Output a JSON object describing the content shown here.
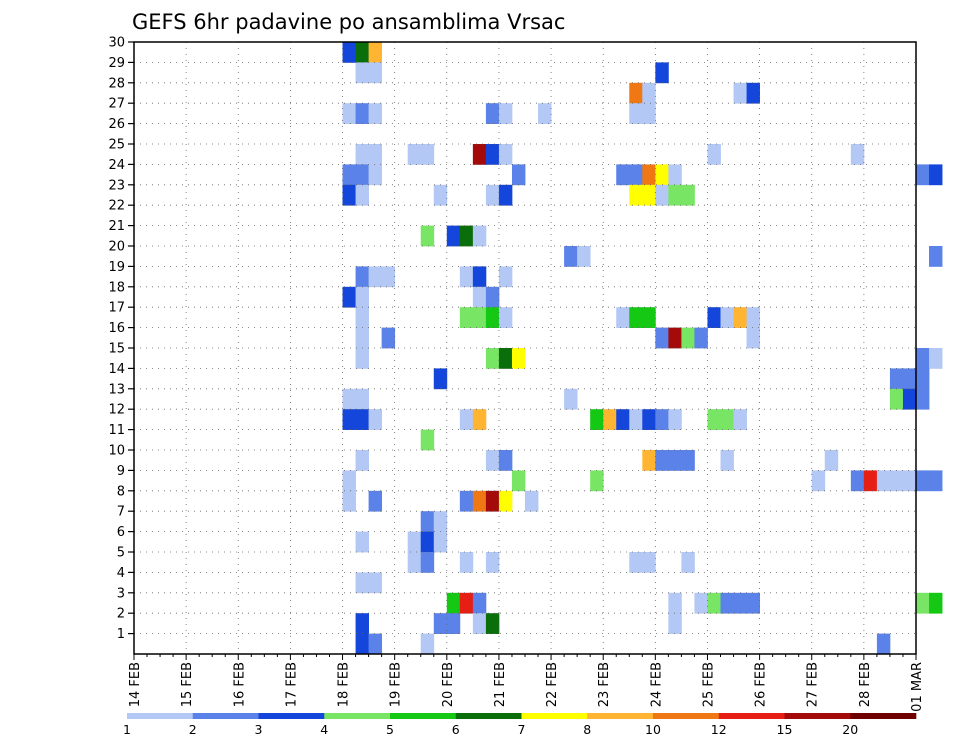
{
  "chart_data": {
    "type": "heatmap",
    "title": "GEFS 6hr padavine po ansamblima Vrsac",
    "xlabel": "",
    "ylabel": "",
    "x_labels": [
      "14 FEB",
      "15 FEB",
      "16 FEB",
      "17 FEB",
      "18 FEB",
      "19 FEB",
      "20 FEB",
      "21 FEB",
      "22 FEB",
      "23 FEB",
      "24 FEB",
      "25 FEB",
      "26 FEB",
      "27 FEB",
      "28 FEB",
      "01 MAR"
    ],
    "y_labels": [
      "1",
      "2",
      "3",
      "4",
      "5",
      "6",
      "7",
      "8",
      "9",
      "10",
      "11",
      "12",
      "13",
      "14",
      "15",
      "16",
      "17",
      "18",
      "19",
      "20",
      "21",
      "22",
      "23",
      "24",
      "25",
      "26",
      "27",
      "28",
      "29",
      "30"
    ],
    "ylim": [
      0,
      30
    ],
    "steps_per_day": 4,
    "grid": true,
    "colorbar": {
      "ticks": [
        "1",
        "2",
        "3",
        "4",
        "5",
        "6",
        "7",
        "8",
        "10",
        "12",
        "15",
        "20"
      ],
      "colors": [
        "#b4c8f5",
        "#5a82e8",
        "#1446dc",
        "#78e664",
        "#14c814",
        "#0a6e0a",
        "#ffff00",
        "#ffb432",
        "#f07814",
        "#e61e14",
        "#a50a0a",
        "#6e0000"
      ]
    },
    "cells": [
      {
        "x": 16,
        "y": 30,
        "v": 3
      },
      {
        "x": 17,
        "y": 30,
        "v": 6
      },
      {
        "x": 18,
        "y": 30,
        "v": 8
      },
      {
        "x": 17,
        "y": 29,
        "v": 1
      },
      {
        "x": 18,
        "y": 29,
        "v": 1
      },
      {
        "x": 40,
        "y": 29,
        "v": 3
      },
      {
        "x": 38,
        "y": 28,
        "v": 9
      },
      {
        "x": 39,
        "y": 28,
        "v": 1
      },
      {
        "x": 46,
        "y": 28,
        "v": 1
      },
      {
        "x": 47,
        "y": 28,
        "v": 3
      },
      {
        "x": 16,
        "y": 27,
        "v": 1
      },
      {
        "x": 17,
        "y": 27,
        "v": 2
      },
      {
        "x": 18,
        "y": 27,
        "v": 1
      },
      {
        "x": 27,
        "y": 27,
        "v": 2
      },
      {
        "x": 28,
        "y": 27,
        "v": 1
      },
      {
        "x": 31,
        "y": 27,
        "v": 1
      },
      {
        "x": 38,
        "y": 27,
        "v": 1
      },
      {
        "x": 39,
        "y": 27,
        "v": 1
      },
      {
        "x": 17,
        "y": 25,
        "v": 1
      },
      {
        "x": 18,
        "y": 25,
        "v": 1
      },
      {
        "x": 21,
        "y": 25,
        "v": 1
      },
      {
        "x": 22,
        "y": 25,
        "v": 1
      },
      {
        "x": 26,
        "y": 25,
        "v": 11
      },
      {
        "x": 27,
        "y": 25,
        "v": 3
      },
      {
        "x": 28,
        "y": 25,
        "v": 1
      },
      {
        "x": 44,
        "y": 25,
        "v": 1
      },
      {
        "x": 55,
        "y": 25,
        "v": 1
      },
      {
        "x": 16,
        "y": 24,
        "v": 2
      },
      {
        "x": 17,
        "y": 24,
        "v": 2
      },
      {
        "x": 18,
        "y": 24,
        "v": 1
      },
      {
        "x": 29,
        "y": 24,
        "v": 2
      },
      {
        "x": 37,
        "y": 24,
        "v": 2
      },
      {
        "x": 38,
        "y": 24,
        "v": 2
      },
      {
        "x": 39,
        "y": 24,
        "v": 9
      },
      {
        "x": 40,
        "y": 24,
        "v": 7
      },
      {
        "x": 41,
        "y": 24,
        "v": 1
      },
      {
        "x": 60,
        "y": 24,
        "v": 2
      },
      {
        "x": 61,
        "y": 24,
        "v": 3
      },
      {
        "x": 16,
        "y": 23,
        "v": 3
      },
      {
        "x": 17,
        "y": 23,
        "v": 1
      },
      {
        "x": 23,
        "y": 23,
        "v": 1
      },
      {
        "x": 27,
        "y": 23,
        "v": 1
      },
      {
        "x": 28,
        "y": 23,
        "v": 3
      },
      {
        "x": 38,
        "y": 23,
        "v": 7
      },
      {
        "x": 39,
        "y": 23,
        "v": 7
      },
      {
        "x": 40,
        "y": 23,
        "v": 1
      },
      {
        "x": 41,
        "y": 23,
        "v": 4
      },
      {
        "x": 42,
        "y": 23,
        "v": 4
      },
      {
        "x": 22,
        "y": 21,
        "v": 4
      },
      {
        "x": 24,
        "y": 21,
        "v": 3
      },
      {
        "x": 25,
        "y": 21,
        "v": 6
      },
      {
        "x": 26,
        "y": 21,
        "v": 1
      },
      {
        "x": 33,
        "y": 20,
        "v": 2
      },
      {
        "x": 34,
        "y": 20,
        "v": 1
      },
      {
        "x": 61,
        "y": 20,
        "v": 2
      },
      {
        "x": 17,
        "y": 19,
        "v": 2
      },
      {
        "x": 18,
        "y": 19,
        "v": 1
      },
      {
        "x": 19,
        "y": 19,
        "v": 1
      },
      {
        "x": 25,
        "y": 19,
        "v": 1
      },
      {
        "x": 26,
        "y": 19,
        "v": 3
      },
      {
        "x": 28,
        "y": 19,
        "v": 1
      },
      {
        "x": 16,
        "y": 18,
        "v": 3
      },
      {
        "x": 17,
        "y": 18,
        "v": 1
      },
      {
        "x": 26,
        "y": 18,
        "v": 1
      },
      {
        "x": 27,
        "y": 18,
        "v": 2
      },
      {
        "x": 17,
        "y": 17,
        "v": 1
      },
      {
        "x": 25,
        "y": 17,
        "v": 4
      },
      {
        "x": 26,
        "y": 17,
        "v": 4
      },
      {
        "x": 27,
        "y": 17,
        "v": 5
      },
      {
        "x": 28,
        "y": 17,
        "v": 1
      },
      {
        "x": 37,
        "y": 17,
        "v": 1
      },
      {
        "x": 38,
        "y": 17,
        "v": 5
      },
      {
        "x": 39,
        "y": 17,
        "v": 5
      },
      {
        "x": 44,
        "y": 17,
        "v": 3
      },
      {
        "x": 45,
        "y": 17,
        "v": 1
      },
      {
        "x": 46,
        "y": 17,
        "v": 8
      },
      {
        "x": 47,
        "y": 17,
        "v": 1
      },
      {
        "x": 17,
        "y": 16,
        "v": 1
      },
      {
        "x": 19,
        "y": 16,
        "v": 2
      },
      {
        "x": 40,
        "y": 16,
        "v": 2
      },
      {
        "x": 41,
        "y": 16,
        "v": 11
      },
      {
        "x": 42,
        "y": 16,
        "v": 4
      },
      {
        "x": 43,
        "y": 16,
        "v": 2
      },
      {
        "x": 47,
        "y": 16,
        "v": 1
      },
      {
        "x": 17,
        "y": 15,
        "v": 1
      },
      {
        "x": 27,
        "y": 15,
        "v": 4
      },
      {
        "x": 28,
        "y": 15,
        "v": 6
      },
      {
        "x": 29,
        "y": 15,
        "v": 7
      },
      {
        "x": 60,
        "y": 15,
        "v": 2
      },
      {
        "x": 61,
        "y": 15,
        "v": 1
      },
      {
        "x": 23,
        "y": 14,
        "v": 3
      },
      {
        "x": 58,
        "y": 14,
        "v": 2
      },
      {
        "x": 59,
        "y": 14,
        "v": 2
      },
      {
        "x": 60,
        "y": 14,
        "v": 2
      },
      {
        "x": 16,
        "y": 13,
        "v": 1
      },
      {
        "x": 17,
        "y": 13,
        "v": 1
      },
      {
        "x": 33,
        "y": 13,
        "v": 1
      },
      {
        "x": 58,
        "y": 13,
        "v": 4
      },
      {
        "x": 59,
        "y": 13,
        "v": 3
      },
      {
        "x": 60,
        "y": 13,
        "v": 2
      },
      {
        "x": 16,
        "y": 12,
        "v": 3
      },
      {
        "x": 17,
        "y": 12,
        "v": 3
      },
      {
        "x": 18,
        "y": 12,
        "v": 1
      },
      {
        "x": 25,
        "y": 12,
        "v": 1
      },
      {
        "x": 26,
        "y": 12,
        "v": 8
      },
      {
        "x": 35,
        "y": 12,
        "v": 5
      },
      {
        "x": 36,
        "y": 12,
        "v": 8
      },
      {
        "x": 37,
        "y": 12,
        "v": 3
      },
      {
        "x": 38,
        "y": 12,
        "v": 1
      },
      {
        "x": 39,
        "y": 12,
        "v": 3
      },
      {
        "x": 40,
        "y": 12,
        "v": 2
      },
      {
        "x": 41,
        "y": 12,
        "v": 1
      },
      {
        "x": 44,
        "y": 12,
        "v": 4
      },
      {
        "x": 45,
        "y": 12,
        "v": 4
      },
      {
        "x": 46,
        "y": 12,
        "v": 1
      },
      {
        "x": 22,
        "y": 11,
        "v": 4
      },
      {
        "x": 17,
        "y": 10,
        "v": 1
      },
      {
        "x": 27,
        "y": 10,
        "v": 1
      },
      {
        "x": 28,
        "y": 10,
        "v": 2
      },
      {
        "x": 39,
        "y": 10,
        "v": 8
      },
      {
        "x": 40,
        "y": 10,
        "v": 2
      },
      {
        "x": 41,
        "y": 10,
        "v": 2
      },
      {
        "x": 42,
        "y": 10,
        "v": 2
      },
      {
        "x": 45,
        "y": 10,
        "v": 1
      },
      {
        "x": 53,
        "y": 10,
        "v": 1
      },
      {
        "x": 16,
        "y": 9,
        "v": 1
      },
      {
        "x": 29,
        "y": 9,
        "v": 4
      },
      {
        "x": 35,
        "y": 9,
        "v": 4
      },
      {
        "x": 52,
        "y": 9,
        "v": 1
      },
      {
        "x": 55,
        "y": 9,
        "v": 2
      },
      {
        "x": 56,
        "y": 9,
        "v": 10
      },
      {
        "x": 57,
        "y": 9,
        "v": 1
      },
      {
        "x": 58,
        "y": 9,
        "v": 1
      },
      {
        "x": 59,
        "y": 9,
        "v": 1
      },
      {
        "x": 60,
        "y": 9,
        "v": 2
      },
      {
        "x": 61,
        "y": 9,
        "v": 2
      },
      {
        "x": 16,
        "y": 8,
        "v": 1
      },
      {
        "x": 18,
        "y": 8,
        "v": 2
      },
      {
        "x": 25,
        "y": 8,
        "v": 2
      },
      {
        "x": 26,
        "y": 8,
        "v": 9
      },
      {
        "x": 27,
        "y": 8,
        "v": 11
      },
      {
        "x": 28,
        "y": 8,
        "v": 7
      },
      {
        "x": 30,
        "y": 8,
        "v": 1
      },
      {
        "x": 22,
        "y": 7,
        "v": 2
      },
      {
        "x": 23,
        "y": 7,
        "v": 1
      },
      {
        "x": 17,
        "y": 6,
        "v": 1
      },
      {
        "x": 21,
        "y": 6,
        "v": 1
      },
      {
        "x": 22,
        "y": 6,
        "v": 3
      },
      {
        "x": 23,
        "y": 6,
        "v": 1
      },
      {
        "x": 21,
        "y": 5,
        "v": 1
      },
      {
        "x": 22,
        "y": 5,
        "v": 2
      },
      {
        "x": 25,
        "y": 5,
        "v": 1
      },
      {
        "x": 27,
        "y": 5,
        "v": 1
      },
      {
        "x": 38,
        "y": 5,
        "v": 1
      },
      {
        "x": 39,
        "y": 5,
        "v": 1
      },
      {
        "x": 42,
        "y": 5,
        "v": 1
      },
      {
        "x": 17,
        "y": 4,
        "v": 1
      },
      {
        "x": 18,
        "y": 4,
        "v": 1
      },
      {
        "x": 24,
        "y": 3,
        "v": 5
      },
      {
        "x": 25,
        "y": 3,
        "v": 10
      },
      {
        "x": 26,
        "y": 3,
        "v": 2
      },
      {
        "x": 41,
        "y": 3,
        "v": 1
      },
      {
        "x": 43,
        "y": 3,
        "v": 1
      },
      {
        "x": 44,
        "y": 3,
        "v": 4
      },
      {
        "x": 45,
        "y": 3,
        "v": 2
      },
      {
        "x": 46,
        "y": 3,
        "v": 2
      },
      {
        "x": 47,
        "y": 3,
        "v": 2
      },
      {
        "x": 60,
        "y": 3,
        "v": 4
      },
      {
        "x": 61,
        "y": 3,
        "v": 5
      },
      {
        "x": 17,
        "y": 2,
        "v": 3
      },
      {
        "x": 23,
        "y": 2,
        "v": 2
      },
      {
        "x": 24,
        "y": 2,
        "v": 2
      },
      {
        "x": 26,
        "y": 2,
        "v": 1
      },
      {
        "x": 27,
        "y": 2,
        "v": 6
      },
      {
        "x": 41,
        "y": 2,
        "v": 1
      },
      {
        "x": 17,
        "y": 1,
        "v": 3
      },
      {
        "x": 18,
        "y": 1,
        "v": 2
      },
      {
        "x": 22,
        "y": 1,
        "v": 1
      },
      {
        "x": 57,
        "y": 1,
        "v": 2
      }
    ]
  }
}
